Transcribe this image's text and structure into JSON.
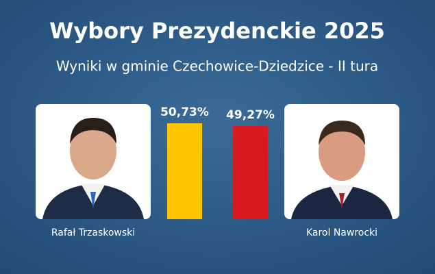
{
  "chart_data": {
    "type": "bar",
    "title": "Wybory Prezydenckie 2025",
    "subtitle": "Wyniki w gminie Czechowice-Dziedzice - II tura",
    "categories": [
      "Rafał Trzaskowski",
      "Karol Nawrocki"
    ],
    "values": [
      50.73,
      49.27
    ],
    "value_labels": [
      "50,73%",
      "49,27%"
    ],
    "colors": [
      "#fcc500",
      "#d71920"
    ]
  }
}
